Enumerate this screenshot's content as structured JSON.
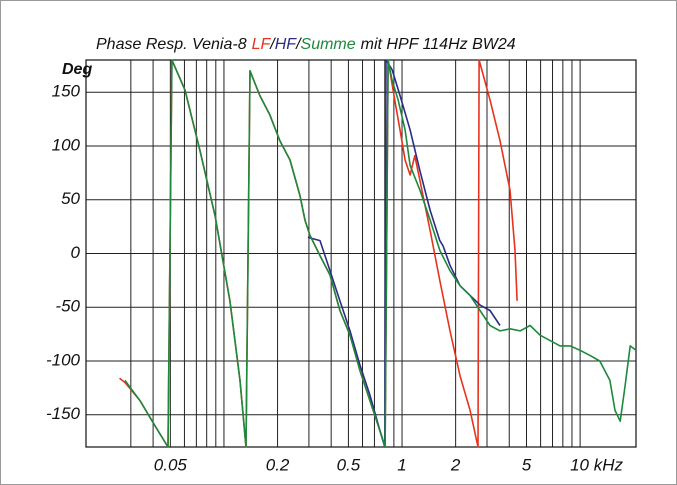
{
  "chart_data": {
    "type": "line",
    "title": "Phase Resp. Venia-8",
    "legend_separator": "/",
    "subtitle": "mit HPF 114Hz BW24",
    "ylabel": "Deg",
    "log_x": true,
    "grid": true,
    "xlim": [
      0.0168,
      20.6
    ],
    "ylim": [
      -180,
      180
    ],
    "xticks": [
      0.05,
      0.2,
      0.5,
      1,
      2,
      5,
      {
        "value": 10,
        "label": "10 kHz"
      }
    ],
    "xgrid_minor": [
      0.03,
      0.04,
      0.06,
      0.07,
      0.08,
      0.09,
      0.1,
      0.3,
      0.4,
      0.6,
      0.7,
      0.8,
      0.9,
      3,
      4,
      6,
      7,
      8,
      9
    ],
    "yticks": [
      150,
      100,
      50,
      0,
      -50,
      -100,
      -150
    ],
    "series": [
      {
        "name": "LF",
        "color": "#e8321e",
        "x": [
          0.0259,
          0.0278,
          0.0338,
          0.0409,
          0.0485,
          0.051,
          0.0604,
          0.0733,
          0.0892,
          0.108,
          0.123,
          0.133,
          0.14,
          0.159,
          0.181,
          0.206,
          0.235,
          0.267,
          0.285,
          0.304,
          0.346,
          0.394,
          0.448,
          0.51,
          0.581,
          0.661,
          0.752,
          0.803,
          0.835,
          0.91,
          0.974,
          1.04,
          1.11,
          1.18,
          1.26,
          1.44,
          1.63,
          1.86,
          2.12,
          2.41,
          2.67,
          2.71,
          3.12,
          3.55,
          4.04,
          4.31,
          4.43
        ],
        "values": [
          -116,
          -120,
          -137,
          -160,
          -180,
          180,
          152,
          96,
          35,
          -44,
          -118,
          -180,
          170,
          147,
          129,
          105,
          87,
          54,
          31,
          17,
          -2,
          -20,
          -53,
          -76,
          -109,
          -137,
          -165,
          -180,
          180,
          143,
          115,
          87,
          73,
          91,
          68,
          21,
          -25,
          -72,
          -114,
          -146,
          -180,
          180,
          143,
          105,
          59,
          3,
          -44
        ]
      },
      {
        "name": "HF",
        "color": "#2b2c86",
        "x": [
          0.296,
          0.346,
          0.394,
          0.448,
          0.51,
          0.581,
          0.661,
          0.752,
          0.8,
          0.813,
          0.879,
          0.974,
          1.11,
          1.26,
          1.44,
          1.63,
          1.7,
          1.86,
          2.12,
          2.41,
          2.74,
          3.12,
          3.55
        ],
        "values": [
          15,
          12,
          -16,
          -44,
          -72,
          -104,
          -132,
          -165,
          -180,
          180,
          171,
          147,
          115,
          77,
          40,
          12,
          7,
          -11,
          -30,
          -39,
          -48,
          -53,
          -67
        ]
      },
      {
        "name": "Summe",
        "color": "#1b8a3c",
        "x": [
          0.0278,
          0.0338,
          0.0409,
          0.0485,
          0.051,
          0.0604,
          0.0733,
          0.0892,
          0.108,
          0.123,
          0.133,
          0.14,
          0.159,
          0.181,
          0.206,
          0.235,
          0.267,
          0.285,
          0.304,
          0.346,
          0.394,
          0.448,
          0.51,
          0.581,
          0.661,
          0.752,
          0.803,
          0.835,
          0.879,
          0.95,
          1.04,
          1.11,
          1.26,
          1.44,
          1.63,
          1.86,
          2.12,
          2.41,
          2.74,
          3.12,
          3.55,
          4.04,
          4.6,
          5.24,
          5.96,
          6.78,
          7.72,
          8.78,
          10.0,
          11.4,
          12.9,
          14.7,
          15.7,
          16.8,
          17.9,
          19.1,
          20.6
        ],
        "values": [
          -118,
          -137,
          -160,
          -180,
          180,
          152,
          96,
          35,
          -44,
          -118,
          -180,
          170,
          147,
          129,
          105,
          87,
          54,
          31,
          17,
          -2,
          -20,
          -53,
          -76,
          -109,
          -137,
          -165,
          -180,
          180,
          161,
          143,
          115,
          82,
          59,
          31,
          3,
          -16,
          -30,
          -39,
          -53,
          -67,
          -72,
          -70,
          -72,
          -67,
          -76,
          -81,
          -86,
          -86,
          -90,
          -95,
          -100,
          -118,
          -146,
          -156,
          -123,
          -86,
          -90
        ]
      }
    ]
  }
}
